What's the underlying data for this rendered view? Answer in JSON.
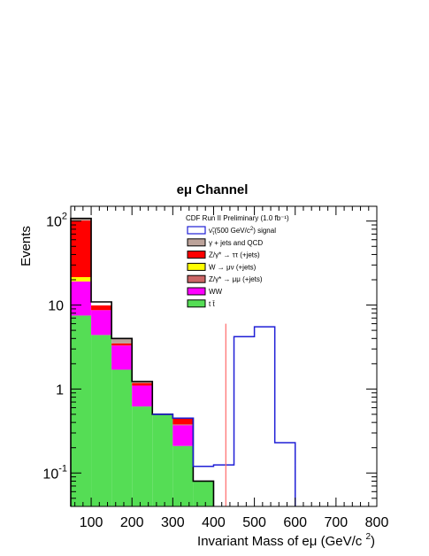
{
  "chart_data": {
    "type": "histogram",
    "title": "eμ Channel",
    "xlabel": "Invariant Mass of eμ (GeV/c²)",
    "ylabel": "Events",
    "xlim": [
      50,
      800
    ],
    "ylim": [
      0.04,
      150
    ],
    "yscale": "log",
    "grid": false,
    "legend_placement": "top-center",
    "legend_header": "CDF Run II Preliminary (1.0 fb⁻¹)",
    "x_ticks": [
      {
        "value": 100,
        "label": "100"
      },
      {
        "value": 200,
        "label": "200"
      },
      {
        "value": 300,
        "label": "300"
      },
      {
        "value": 400,
        "label": "400"
      },
      {
        "value": 500,
        "label": "500"
      },
      {
        "value": 600,
        "label": "600"
      },
      {
        "value": 700,
        "label": "700"
      },
      {
        "value": 800,
        "label": "800"
      }
    ],
    "y_ticks": [
      {
        "value": 0.1,
        "base": "10",
        "exp": "-1"
      },
      {
        "value": 1,
        "base": "1",
        "exp": ""
      },
      {
        "value": 10,
        "base": "10",
        "exp": ""
      },
      {
        "value": 100,
        "base": "10",
        "exp": "2"
      }
    ],
    "bin_edges": [
      50,
      100,
      150,
      200,
      250,
      300,
      350,
      400
    ],
    "stack": [
      {
        "name": "t t̄",
        "color": "#55dd55",
        "values": [
          7.5,
          4.4,
          1.7,
          0.62,
          0.5,
          0.21,
          0.08
        ]
      },
      {
        "name": "WW",
        "color": "#ff00ff",
        "values": [
          11.6,
          4.3,
          1.6,
          0.48,
          0.0,
          0.16,
          0.0
        ]
      },
      {
        "name": "Z/γ* → μμ (+jets)",
        "color": "#cc6666",
        "values": [
          0.0,
          0.0,
          0.0,
          0.0,
          0.0,
          0.01,
          0.0
        ]
      },
      {
        "name": "W → μν (+jets)",
        "color": "#ffff00",
        "values": [
          2.4,
          0.0,
          0.0,
          0.0,
          0.0,
          0.0,
          0.0
        ]
      },
      {
        "name": "Z/γ* → ττ (+jets)",
        "color": "#ff0000",
        "values": [
          80.0,
          1.2,
          0.2,
          0.08,
          0.0,
          0.07,
          0.0
        ]
      },
      {
        "name": "γ + jets and QCD",
        "color": "#bca39a",
        "values": [
          6.0,
          0.0,
          0.5,
          0.05,
          0.0,
          0.0,
          0.0
        ]
      }
    ],
    "stack_tops": [
      107.5,
      10.9,
      4.0,
      1.23,
      0.5,
      0.45,
      0.08
    ],
    "signal": {
      "name": "ντ(500 GeV/c²) signal",
      "color": "#1f1fd6",
      "bin_edges": [
        250,
        300,
        350,
        400,
        450,
        500,
        550,
        600
      ],
      "values": [
        0.5,
        0.45,
        0.12,
        0.125,
        4.2,
        5.5,
        0.23
      ]
    },
    "cut_line": {
      "x": 430,
      "color": "#ff6a6a"
    },
    "legend": [
      {
        "label_main": "ν̃",
        "label_sub": "τ",
        "label_rest": "(500 GeV/c",
        "label_sup": "2",
        "label_end": ") signal",
        "color": "#1f1fd6",
        "style": "outline"
      },
      {
        "label_main": "γ + jets and QCD",
        "color": "#bca39a",
        "style": "fill"
      },
      {
        "label_main": "Z/γ* → ττ (+jets)",
        "color": "#ff0000",
        "style": "fill"
      },
      {
        "label_main": "W → μν (+jets)",
        "color": "#ffff00",
        "style": "fill"
      },
      {
        "label_main": "Z/γ* → μμ (+jets)",
        "color": "#cc6666",
        "style": "fill"
      },
      {
        "label_main": "WW",
        "color": "#ff00ff",
        "style": "fill"
      },
      {
        "label_main": "t t̄",
        "color": "#55dd55",
        "style": "fill"
      }
    ]
  }
}
